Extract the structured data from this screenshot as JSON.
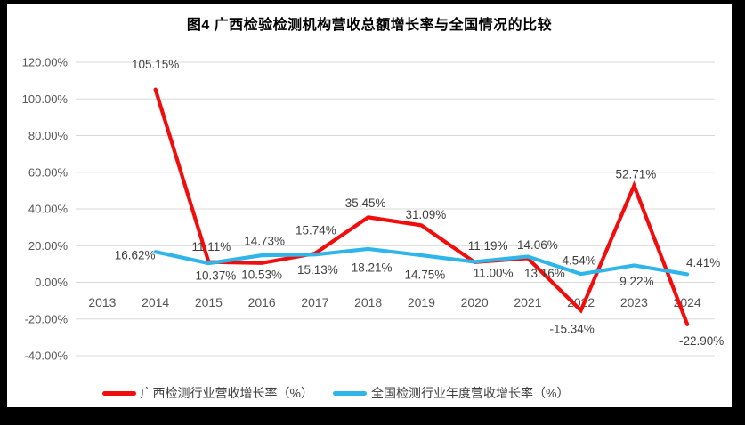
{
  "title": "图4 广西检验检测机构营收总额增长率与全国情况的比较",
  "chart_data": {
    "type": "line",
    "categories": [
      "2013",
      "2014",
      "2015",
      "2016",
      "2017",
      "2018",
      "2019",
      "2020",
      "2021",
      "2022",
      "2023",
      "2024"
    ],
    "ylim": [
      -40,
      120
    ],
    "ytick_step": 20,
    "ytick_labels": [
      "-40.00%",
      "-20.00%",
      "0.00%",
      "20.00%",
      "40.00%",
      "60.00%",
      "80.00%",
      "100.00%",
      "120.00%"
    ],
    "grid": true,
    "legend_position": "bottom",
    "value_suffix": "%",
    "series": [
      {
        "name": "广西检测行业营收增长率（%）",
        "color": "#f20d0d",
        "start_category": "2014",
        "values": [
          105.15,
          11.11,
          10.53,
          15.74,
          35.45,
          31.09,
          11.0,
          13.16,
          -15.34,
          52.71,
          -22.9
        ],
        "label_offsets": [
          [
            0,
            -28
          ],
          [
            3,
            -17
          ],
          [
            0,
            13
          ],
          [
            1,
            -26
          ],
          [
            -3,
            -16
          ],
          [
            5,
            -12
          ],
          [
            21,
            12
          ],
          [
            19,
            17
          ],
          [
            -10,
            21
          ],
          [
            2,
            -13
          ],
          [
            16,
            19
          ]
        ]
      },
      {
        "name": "全国检测行业年度营收增长率（%）",
        "color": "#2eb6ea",
        "start_category": "2014",
        "values": [
          16.62,
          10.37,
          14.73,
          15.13,
          18.21,
          14.75,
          11.19,
          14.06,
          4.54,
          9.22,
          4.41
        ],
        "label_offsets": [
          [
            -23,
            4
          ],
          [
            8,
            14
          ],
          [
            3,
            -16
          ],
          [
            3,
            17
          ],
          [
            4,
            21
          ],
          [
            4,
            22
          ],
          [
            15,
            -18
          ],
          [
            11,
            -13
          ],
          [
            -2,
            -15
          ],
          [
            3,
            18
          ],
          [
            18,
            -13
          ]
        ]
      }
    ]
  },
  "colors": {
    "grid": "#d9d9d9",
    "axis_text": "#555555",
    "data_label": "#3f3f3f",
    "background": "#ffffff",
    "frame": "#000000"
  }
}
